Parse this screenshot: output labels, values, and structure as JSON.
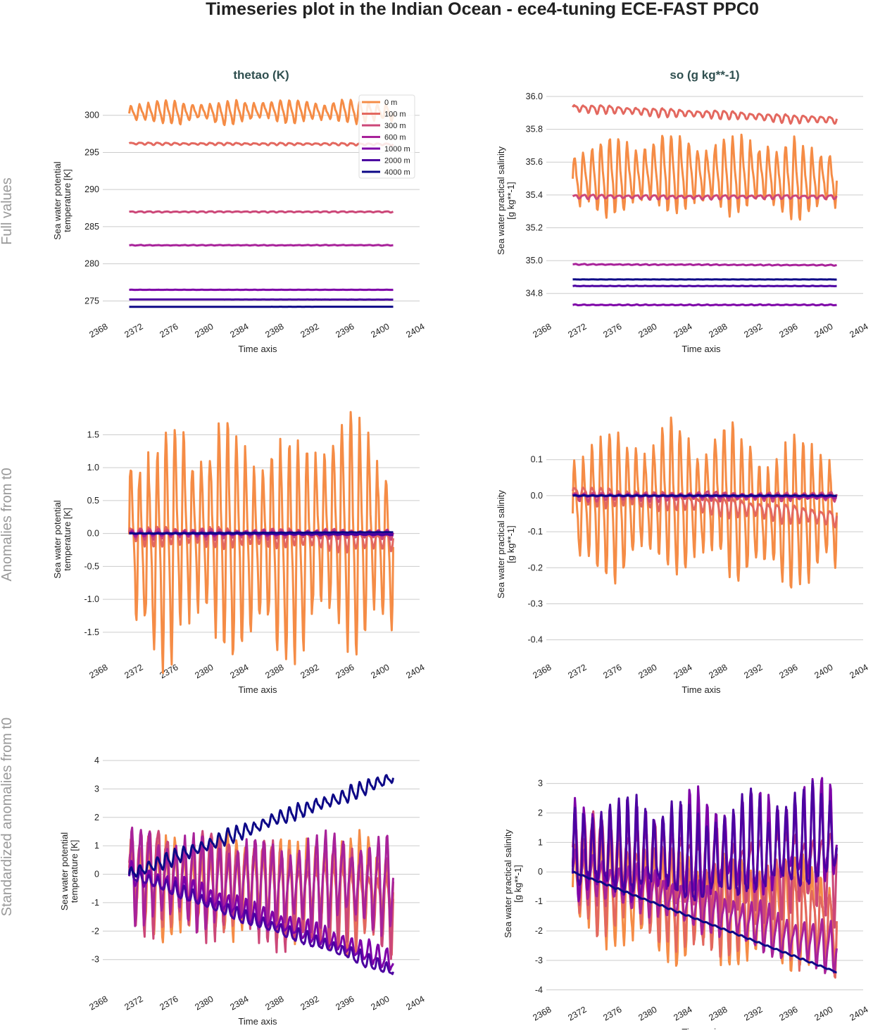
{
  "title": "Timeseries plot in the Indian Ocean - ece4-tuning ECE-FAST PPC0",
  "row_labels": [
    "Full values",
    "Anomalies from t0",
    "Standardized anomalies from t0"
  ],
  "colors": {
    "0 m": "#f58c46",
    "100 m": "#e3685f",
    "300 m": "#cc4778",
    "600 m": "#a8229a",
    "1000 m": "#7e03a8",
    "2000 m": "#4c02a1",
    "4000 m": "#0d0887"
  },
  "legend": [
    "0 m",
    "100 m",
    "300 m",
    "600 m",
    "1000 m",
    "2000 m",
    "4000 m"
  ],
  "chart_data": [
    {
      "type": "line",
      "title": "thetao (K)",
      "xlabel": "Time axis",
      "ylabel": [
        "Sea water potential",
        "temperature [K]"
      ],
      "xlim": [
        2368,
        2404
      ],
      "xticks": [
        2368,
        2372,
        2376,
        2380,
        2384,
        2388,
        2392,
        2396,
        2400,
        2404
      ],
      "ylim": [
        273.8,
        303.2
      ],
      "yticks": [
        275,
        280,
        285,
        290,
        295,
        300
      ],
      "legend": "top-right",
      "grid": true,
      "x_range": [
        2371,
        2401
      ],
      "series": [
        {
          "name": "0 m",
          "mean": 300.3,
          "seasonal_amplitude": 1.1,
          "trend": 0
        },
        {
          "name": "100 m",
          "mean": 296.2,
          "seasonal_amplitude": 0.12,
          "trend": -0.1
        },
        {
          "name": "300 m",
          "mean": 287.0,
          "seasonal_amplitude": 0.06,
          "trend": 0
        },
        {
          "name": "600 m",
          "mean": 282.5,
          "seasonal_amplitude": 0.03,
          "trend": 0
        },
        {
          "name": "1000 m",
          "mean": 276.5,
          "seasonal_amplitude": 0.01,
          "trend": 0
        },
        {
          "name": "2000 m",
          "mean": 275.2,
          "seasonal_amplitude": 0.005,
          "trend": -0.02
        },
        {
          "name": "4000 m",
          "mean": 274.2,
          "seasonal_amplitude": 0.002,
          "trend": 0.02
        }
      ]
    },
    {
      "type": "line",
      "title": "so (g kg**-1)",
      "xlabel": "Time axis",
      "ylabel": [
        "Sea water practical salinity",
        "[g kg**-1]"
      ],
      "xlim": [
        2368,
        2404
      ],
      "xticks": [
        2368,
        2372,
        2376,
        2380,
        2384,
        2388,
        2392,
        2396,
        2400,
        2404
      ],
      "ylim": [
        34.7,
        36.03
      ],
      "yticks": [
        34.8,
        35.0,
        35.2,
        35.4,
        35.6,
        35.8,
        36.0
      ],
      "grid": true,
      "x_range": [
        2371,
        2401
      ],
      "series": [
        {
          "name": "0 m",
          "mean": 35.5,
          "seasonal_amplitude": 0.17,
          "trend": 0
        },
        {
          "name": "100 m",
          "mean": 35.93,
          "seasonal_amplitude": 0.02,
          "trend": -0.07
        },
        {
          "name": "300 m",
          "mean": 35.39,
          "seasonal_amplitude": 0.01,
          "trend": 0
        },
        {
          "name": "600 m",
          "mean": 34.977,
          "seasonal_amplitude": 0.002,
          "trend": -0.005
        },
        {
          "name": "1000 m",
          "mean": 34.73,
          "seasonal_amplitude": 0.002,
          "trend": 0
        },
        {
          "name": "2000 m",
          "mean": 34.845,
          "seasonal_amplitude": 0.001,
          "trend": 0
        },
        {
          "name": "4000 m",
          "mean": 34.885,
          "seasonal_amplitude": 0.0005,
          "trend": 0
        }
      ]
    },
    {
      "type": "line",
      "xlabel": "Time axis",
      "ylabel": [
        "Sea water potential",
        "temperature [K]"
      ],
      "xlim": [
        2368,
        2404
      ],
      "xticks": [
        2368,
        2372,
        2376,
        2380,
        2384,
        2388,
        2392,
        2396,
        2400,
        2404
      ],
      "ylim": [
        -1.78,
        1.6
      ],
      "yticks": [
        -1.5,
        -1.0,
        -0.5,
        0.0,
        0.5,
        1.0,
        1.5
      ],
      "grid": true,
      "x_range": [
        2371,
        2401
      ],
      "series": [
        {
          "name": "0 m",
          "mean": 0,
          "seasonal_amplitude": 1.25,
          "trend": 0
        },
        {
          "name": "100 m",
          "mean": 0,
          "seasonal_amplitude": 0.12,
          "trend": -0.1
        },
        {
          "name": "300 m",
          "mean": 0,
          "seasonal_amplitude": 0.06,
          "trend": 0
        },
        {
          "name": "600 m",
          "mean": 0,
          "seasonal_amplitude": 0.03,
          "trend": 0
        },
        {
          "name": "1000 m",
          "mean": 0,
          "seasonal_amplitude": 0.01,
          "trend": 0
        },
        {
          "name": "2000 m",
          "mean": 0,
          "seasonal_amplitude": 0.005,
          "trend": -0.02
        },
        {
          "name": "4000 m",
          "mean": 0,
          "seasonal_amplitude": 0.002,
          "trend": 0.02
        }
      ]
    },
    {
      "type": "line",
      "xlabel": "Time axis",
      "ylabel": [
        "Sea water practical salinity",
        "[g kg**-1]"
      ],
      "xlim": [
        2368,
        2404
      ],
      "xticks": [
        2368,
        2372,
        2376,
        2380,
        2384,
        2388,
        2392,
        2396,
        2400,
        2404
      ],
      "ylim": [
        -0.43,
        0.16
      ],
      "yticks": [
        -0.4,
        -0.3,
        -0.2,
        -0.1,
        0.0,
        0.1
      ],
      "grid": true,
      "x_range": [
        2371,
        2401
      ],
      "series": [
        {
          "name": "0 m",
          "mean": -0.05,
          "seasonal_amplitude": 0.15,
          "trend": 0
        },
        {
          "name": "100 m",
          "mean": 0.01,
          "seasonal_amplitude": 0.02,
          "trend": -0.07
        },
        {
          "name": "300 m",
          "mean": 0,
          "seasonal_amplitude": 0.01,
          "trend": 0
        },
        {
          "name": "600 m",
          "mean": 0,
          "seasonal_amplitude": 0.002,
          "trend": -0.005
        },
        {
          "name": "1000 m",
          "mean": 0,
          "seasonal_amplitude": 0.002,
          "trend": 0
        },
        {
          "name": "2000 m",
          "mean": 0,
          "seasonal_amplitude": 0.001,
          "trend": 0
        },
        {
          "name": "4000 m",
          "mean": 0,
          "seasonal_amplitude": 0.0005,
          "trend": 0
        }
      ]
    },
    {
      "type": "line",
      "xlabel": "Time axis",
      "ylabel": [
        "Sea water potential",
        "temperature [K]"
      ],
      "xlim": [
        2368,
        2404
      ],
      "xticks": [
        2368,
        2372,
        2376,
        2380,
        2384,
        2388,
        2392,
        2396,
        2400,
        2404
      ],
      "ylim": [
        -3.8,
        4.0
      ],
      "yticks": [
        -3,
        -2,
        -1,
        0,
        1,
        2,
        3,
        4
      ],
      "grid": true,
      "x_range": [
        2371,
        2401
      ],
      "series": [
        {
          "name": "0 m",
          "mean": 0,
          "seasonal_amplitude": 1.3,
          "trend": -0.5
        },
        {
          "name": "100 m",
          "mean": 0,
          "seasonal_amplitude": 1.2,
          "trend": -1.0
        },
        {
          "name": "300 m",
          "mean": 0,
          "seasonal_amplitude": 1.4,
          "trend": -0.5
        },
        {
          "name": "600 m",
          "mean": 0,
          "seasonal_amplitude": 1.2,
          "trend": -0.3
        },
        {
          "name": "1000 m",
          "mean": 0,
          "seasonal_amplitude": 0.3,
          "trend": -3.0
        },
        {
          "name": "2000 m",
          "mean": 0,
          "seasonal_amplitude": 0.2,
          "trend": -3.4
        },
        {
          "name": "4000 m",
          "mean": 0,
          "seasonal_amplitude": 0.2,
          "trend": 3.4
        }
      ]
    },
    {
      "type": "line",
      "xlabel": "Time axis",
      "ylabel": [
        "Sea water practical salinity",
        "[g kg**-1]"
      ],
      "xlim": [
        2368,
        2404
      ],
      "xticks": [
        2368,
        2372,
        2376,
        2380,
        2384,
        2388,
        2392,
        2396,
        2400,
        2404
      ],
      "ylim": [
        -4.1,
        3.3
      ],
      "yticks": [
        -4,
        -3,
        -2,
        -1,
        0,
        1,
        2,
        3
      ],
      "grid": true,
      "x_range": [
        2371,
        2401
      ],
      "series": [
        {
          "name": "0 m",
          "mean": -0.5,
          "seasonal_amplitude": 1.4,
          "trend": -1.0
        },
        {
          "name": "100 m",
          "mean": 0,
          "seasonal_amplitude": 1.3,
          "trend": -1.5
        },
        {
          "name": "300 m",
          "mean": 0.5,
          "seasonal_amplitude": 1.2,
          "trend": -0.5
        },
        {
          "name": "600 m",
          "mean": 0,
          "seasonal_amplitude": 0.6,
          "trend": -2.5
        },
        {
          "name": "1000 m",
          "mean": 0.5,
          "seasonal_amplitude": 1.3,
          "trend": 0.5
        },
        {
          "name": "2000 m",
          "mean": 0.3,
          "seasonal_amplitude": 1.3,
          "trend": 0.5
        },
        {
          "name": "4000 m",
          "mean": 0,
          "seasonal_amplitude": 0.02,
          "trend": -3.4
        }
      ]
    }
  ]
}
